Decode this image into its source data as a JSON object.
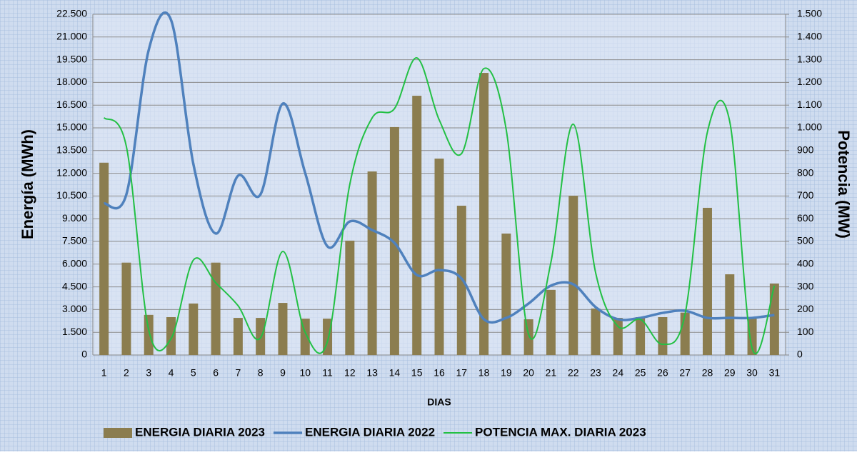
{
  "chart_data": {
    "type": "bar-line",
    "x_label": "DIAS",
    "y_label": "Energía (MWh)",
    "y2_label": "Potencia (MW)",
    "categories": [
      "1",
      "2",
      "3",
      "4",
      "5",
      "6",
      "7",
      "8",
      "9",
      "10",
      "11",
      "12",
      "13",
      "14",
      "15",
      "16",
      "17",
      "18",
      "19",
      "20",
      "21",
      "22",
      "23",
      "24",
      "25",
      "26",
      "27",
      "28",
      "29",
      "30",
      "31"
    ],
    "series": [
      {
        "name": "ENERGIA DIARIA 2023",
        "type": "bar",
        "color": "#8b7d4f",
        "values": [
          12700,
          6100,
          2650,
          2500,
          3400,
          6100,
          2450,
          2450,
          3440,
          2400,
          2400,
          7550,
          12120,
          15050,
          17120,
          12970,
          9860,
          18630,
          8020,
          2360,
          4300,
          10520,
          3070,
          2450,
          2500,
          2500,
          2800,
          9720,
          5330,
          2450,
          4720
        ]
      },
      {
        "name": "ENERGIA DIARIA 2022",
        "type": "line",
        "color": "#4f81bd",
        "values": [
          10000,
          10600,
          20140,
          22120,
          12600,
          8020,
          11840,
          10600,
          16600,
          12030,
          7170,
          8820,
          8250,
          7400,
          5280,
          5610,
          5050,
          2360,
          2450,
          3400,
          4580,
          4670,
          3160,
          2360,
          2450,
          2780,
          2920,
          2450,
          2450,
          2450,
          2640
        ]
      },
      {
        "name": "POTENCIA MAX. DIARIA 2023",
        "type": "line",
        "axis": "y2",
        "color": "#22c044",
        "values": [
          1045,
          918,
          110,
          72,
          418,
          318,
          217,
          75,
          456,
          100,
          60,
          752,
          1044,
          1085,
          1308,
          1035,
          887,
          1261,
          991,
          91,
          409,
          1016,
          362,
          126,
          157,
          47,
          179,
          981,
          1028,
          31,
          305
        ]
      }
    ],
    "ylim": [
      0,
      22500
    ],
    "yticks": [
      0,
      {
        "value": 1500,
        "label": "1.500"
      },
      {
        "value": 3000,
        "label": "3.000"
      },
      {
        "value": 4500,
        "label": "4.500"
      },
      {
        "value": 6000,
        "label": "6.000"
      },
      {
        "value": 7500,
        "label": "7.500"
      },
      {
        "value": 9000,
        "label": "9.000"
      },
      {
        "value": 10500,
        "label": "10.500"
      },
      {
        "value": 12000,
        "label": "12.000"
      },
      {
        "value": 13500,
        "label": "13.500"
      },
      {
        "value": 15000,
        "label": "15.000"
      },
      {
        "value": 16500,
        "label": "16.500"
      },
      {
        "value": 18000,
        "label": "18.000"
      },
      {
        "value": 19500,
        "label": "19.500"
      },
      {
        "value": 21000,
        "label": "21.000"
      },
      {
        "value": 22500,
        "label": "22.500"
      }
    ],
    "y2lim": [
      0,
      1500
    ],
    "y2ticks": [
      0,
      100,
      200,
      300,
      400,
      500,
      600,
      700,
      800,
      900,
      {
        "value": 1000,
        "label": "1.000"
      },
      {
        "value": 1100,
        "label": "1.100"
      },
      {
        "value": 1200,
        "label": "1.200"
      },
      {
        "value": 1300,
        "label": "1.300"
      },
      {
        "value": 1400,
        "label": "1.400"
      },
      {
        "value": 1500,
        "label": "1.500"
      }
    ],
    "grid": true,
    "legend": "bottom"
  }
}
